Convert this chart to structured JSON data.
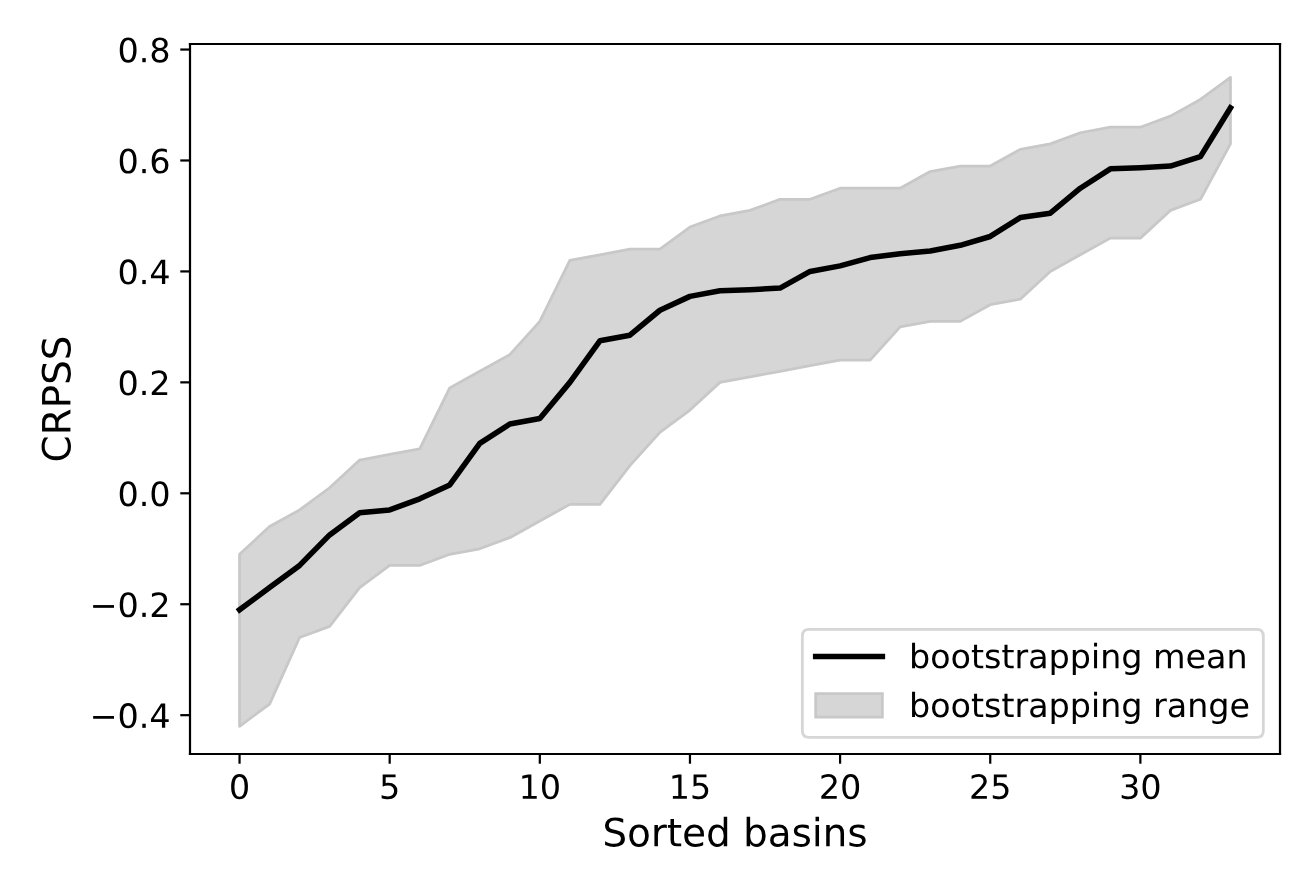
{
  "chart_data": {
    "type": "line",
    "xlabel": "Sorted basins",
    "ylabel": "CRPSS",
    "x": [
      0,
      1,
      2,
      3,
      4,
      5,
      6,
      7,
      8,
      9,
      10,
      11,
      12,
      13,
      14,
      15,
      16,
      17,
      18,
      19,
      20,
      21,
      22,
      23,
      24,
      25,
      26,
      27,
      28,
      29,
      30,
      31,
      32,
      33
    ],
    "series": [
      {
        "name": "bootstrapping mean",
        "color": "#000000",
        "values": [
          -0.21,
          -0.17,
          -0.13,
          -0.075,
          -0.035,
          -0.03,
          -0.01,
          0.015,
          0.09,
          0.125,
          0.135,
          0.2,
          0.275,
          0.285,
          0.33,
          0.355,
          0.365,
          0.367,
          0.37,
          0.4,
          0.41,
          0.425,
          0.432,
          0.437,
          0.447,
          0.463,
          0.497,
          0.505,
          0.55,
          0.585,
          0.587,
          0.59,
          0.607,
          0.695
        ],
        "lower": [
          -0.42,
          -0.38,
          -0.26,
          -0.24,
          -0.17,
          -0.13,
          -0.13,
          -0.11,
          -0.1,
          -0.08,
          -0.05,
          -0.02,
          -0.02,
          0.05,
          0.11,
          0.15,
          0.2,
          0.21,
          0.22,
          0.23,
          0.24,
          0.24,
          0.3,
          0.31,
          0.31,
          0.34,
          0.35,
          0.4,
          0.43,
          0.46,
          0.46,
          0.51,
          0.53,
          0.63
        ],
        "upper": [
          -0.11,
          -0.06,
          -0.03,
          0.01,
          0.06,
          0.07,
          0.08,
          0.19,
          0.22,
          0.25,
          0.31,
          0.42,
          0.43,
          0.44,
          0.44,
          0.48,
          0.5,
          0.51,
          0.53,
          0.53,
          0.55,
          0.55,
          0.55,
          0.58,
          0.59,
          0.59,
          0.62,
          0.63,
          0.65,
          0.66,
          0.66,
          0.68,
          0.71,
          0.75
        ]
      },
      {
        "name": "bootstrapping range",
        "type": "area",
        "color": "#d6d6d6",
        "values": [
          null,
          null,
          null,
          null,
          null,
          null,
          null,
          null,
          null,
          null,
          null,
          null,
          null,
          null,
          null,
          null,
          null,
          null,
          null,
          null,
          null,
          null,
          null,
          null,
          null,
          null,
          null,
          null,
          null,
          null,
          null,
          null,
          null,
          null
        ]
      }
    ],
    "xlim": [
      -1.65,
      34.65
    ],
    "ylim": [
      -0.47,
      0.81
    ],
    "xticks": [
      0,
      5,
      10,
      15,
      20,
      25,
      30
    ],
    "yticks": [
      {
        "value": -0.4,
        "label": "−0.4"
      },
      {
        "value": -0.2,
        "label": "−0.2"
      },
      {
        "value": 0,
        "label": "0.0"
      },
      {
        "value": 0.2,
        "label": "0.2"
      },
      {
        "value": 0.4,
        "label": "0.4"
      },
      {
        "value": 0.6,
        "label": "0.6"
      },
      {
        "value": 0.8,
        "label": "0.8"
      }
    ],
    "legend": "lower right",
    "grid": false
  }
}
